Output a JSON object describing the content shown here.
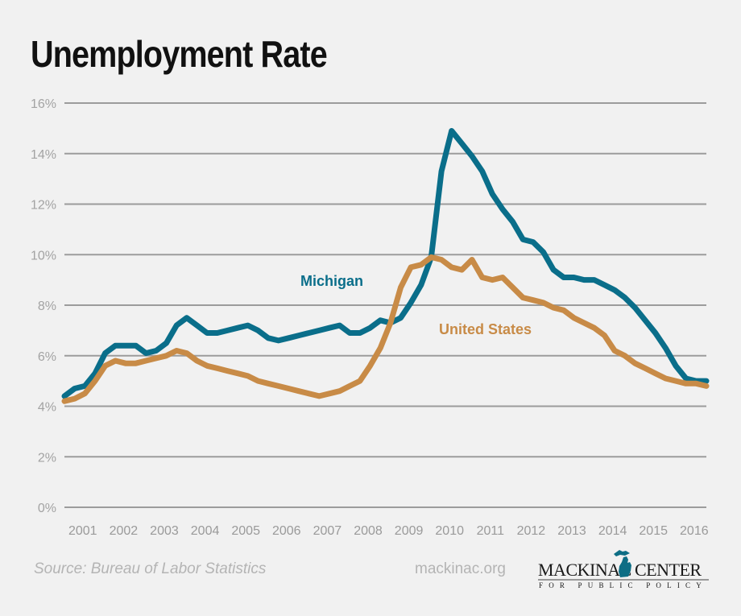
{
  "title": "Unemployment Rate",
  "footer": {
    "source": "Source: Bureau of Labor Statistics",
    "site": "mackinac.org",
    "logo": {
      "left_text": "MACKINAC",
      "right_text": "CENTER",
      "tagline": "FOR PUBLIC POLICY",
      "icon": "michigan-map-icon",
      "icon_color": "#0e6e85"
    }
  },
  "colors": {
    "michigan": "#0a6e8a",
    "united_states": "#c88b47",
    "grid": "#9c9c9c",
    "background": "#f1f1f1"
  },
  "chart_data": {
    "type": "line",
    "title": "Unemployment Rate",
    "xlabel": "",
    "ylabel": "",
    "ylim": [
      0,
      16
    ],
    "xlim": [
      2001.0,
      2016.75
    ],
    "grid": true,
    "legend": "inline-labels",
    "y_ticks": [
      "0%",
      "2%",
      "4%",
      "6%",
      "8%",
      "10%",
      "12%",
      "14%",
      "16%"
    ],
    "y_tick_values": [
      0,
      2,
      4,
      6,
      8,
      10,
      12,
      14,
      16
    ],
    "x_ticks": [
      "2001",
      "2002",
      "2003",
      "2004",
      "2005",
      "2006",
      "2007",
      "2008",
      "2009",
      "2010",
      "2011",
      "2012",
      "2013",
      "2014",
      "2015",
      "2016"
    ],
    "annotations": [
      {
        "text": "Michigan",
        "series": "Michigan"
      },
      {
        "text": "United States",
        "series": "United States"
      }
    ],
    "x": [
      2001.0,
      2001.25,
      2001.5,
      2001.75,
      2002.0,
      2002.25,
      2002.5,
      2002.75,
      2003.0,
      2003.25,
      2003.5,
      2003.75,
      2004.0,
      2004.25,
      2004.5,
      2004.75,
      2005.0,
      2005.25,
      2005.5,
      2005.75,
      2006.0,
      2006.25,
      2006.5,
      2006.75,
      2007.0,
      2007.25,
      2007.5,
      2007.75,
      2008.0,
      2008.25,
      2008.5,
      2008.75,
      2009.0,
      2009.25,
      2009.5,
      2009.75,
      2010.0,
      2010.25,
      2010.5,
      2010.75,
      2011.0,
      2011.25,
      2011.5,
      2011.75,
      2012.0,
      2012.25,
      2012.5,
      2012.75,
      2013.0,
      2013.25,
      2013.5,
      2013.75,
      2014.0,
      2014.25,
      2014.5,
      2014.75,
      2015.0,
      2015.25,
      2015.5,
      2015.75,
      2016.0,
      2016.25,
      2016.5,
      2016.75
    ],
    "series": [
      {
        "name": "Michigan",
        "values": [
          4.4,
          4.7,
          4.8,
          5.3,
          6.1,
          6.4,
          6.4,
          6.4,
          6.1,
          6.2,
          6.5,
          7.2,
          7.5,
          7.2,
          6.9,
          6.9,
          7.0,
          7.1,
          7.2,
          7.0,
          6.7,
          6.6,
          6.7,
          6.8,
          6.9,
          7.0,
          7.1,
          7.2,
          6.9,
          6.9,
          7.1,
          7.4,
          7.3,
          7.5,
          8.1,
          8.8,
          9.9,
          13.3,
          14.9,
          14.4,
          13.9,
          13.3,
          12.4,
          11.8,
          11.3,
          10.6,
          10.5,
          10.1,
          9.4,
          9.1,
          9.1,
          9.0,
          9.0,
          8.8,
          8.6,
          8.3,
          7.9,
          7.4,
          6.9,
          6.3,
          5.6,
          5.1,
          5.0,
          5.0
        ]
      },
      {
        "name": "United States",
        "values": [
          4.2,
          4.3,
          4.5,
          5.0,
          5.6,
          5.8,
          5.7,
          5.7,
          5.8,
          5.9,
          6.0,
          6.2,
          6.1,
          5.8,
          5.6,
          5.5,
          5.4,
          5.3,
          5.2,
          5.0,
          4.9,
          4.8,
          4.7,
          4.6,
          4.5,
          4.4,
          4.5,
          4.6,
          4.8,
          5.0,
          5.6,
          6.3,
          7.3,
          8.7,
          9.5,
          9.6,
          9.9,
          9.8,
          9.5,
          9.4,
          9.8,
          9.1,
          9.0,
          9.1,
          8.7,
          8.3,
          8.2,
          8.1,
          7.9,
          7.8,
          7.5,
          7.3,
          7.1,
          6.8,
          6.2,
          6.0,
          5.7,
          5.5,
          5.3,
          5.1,
          5.0,
          4.9,
          4.9,
          4.8
        ]
      }
    ]
  }
}
